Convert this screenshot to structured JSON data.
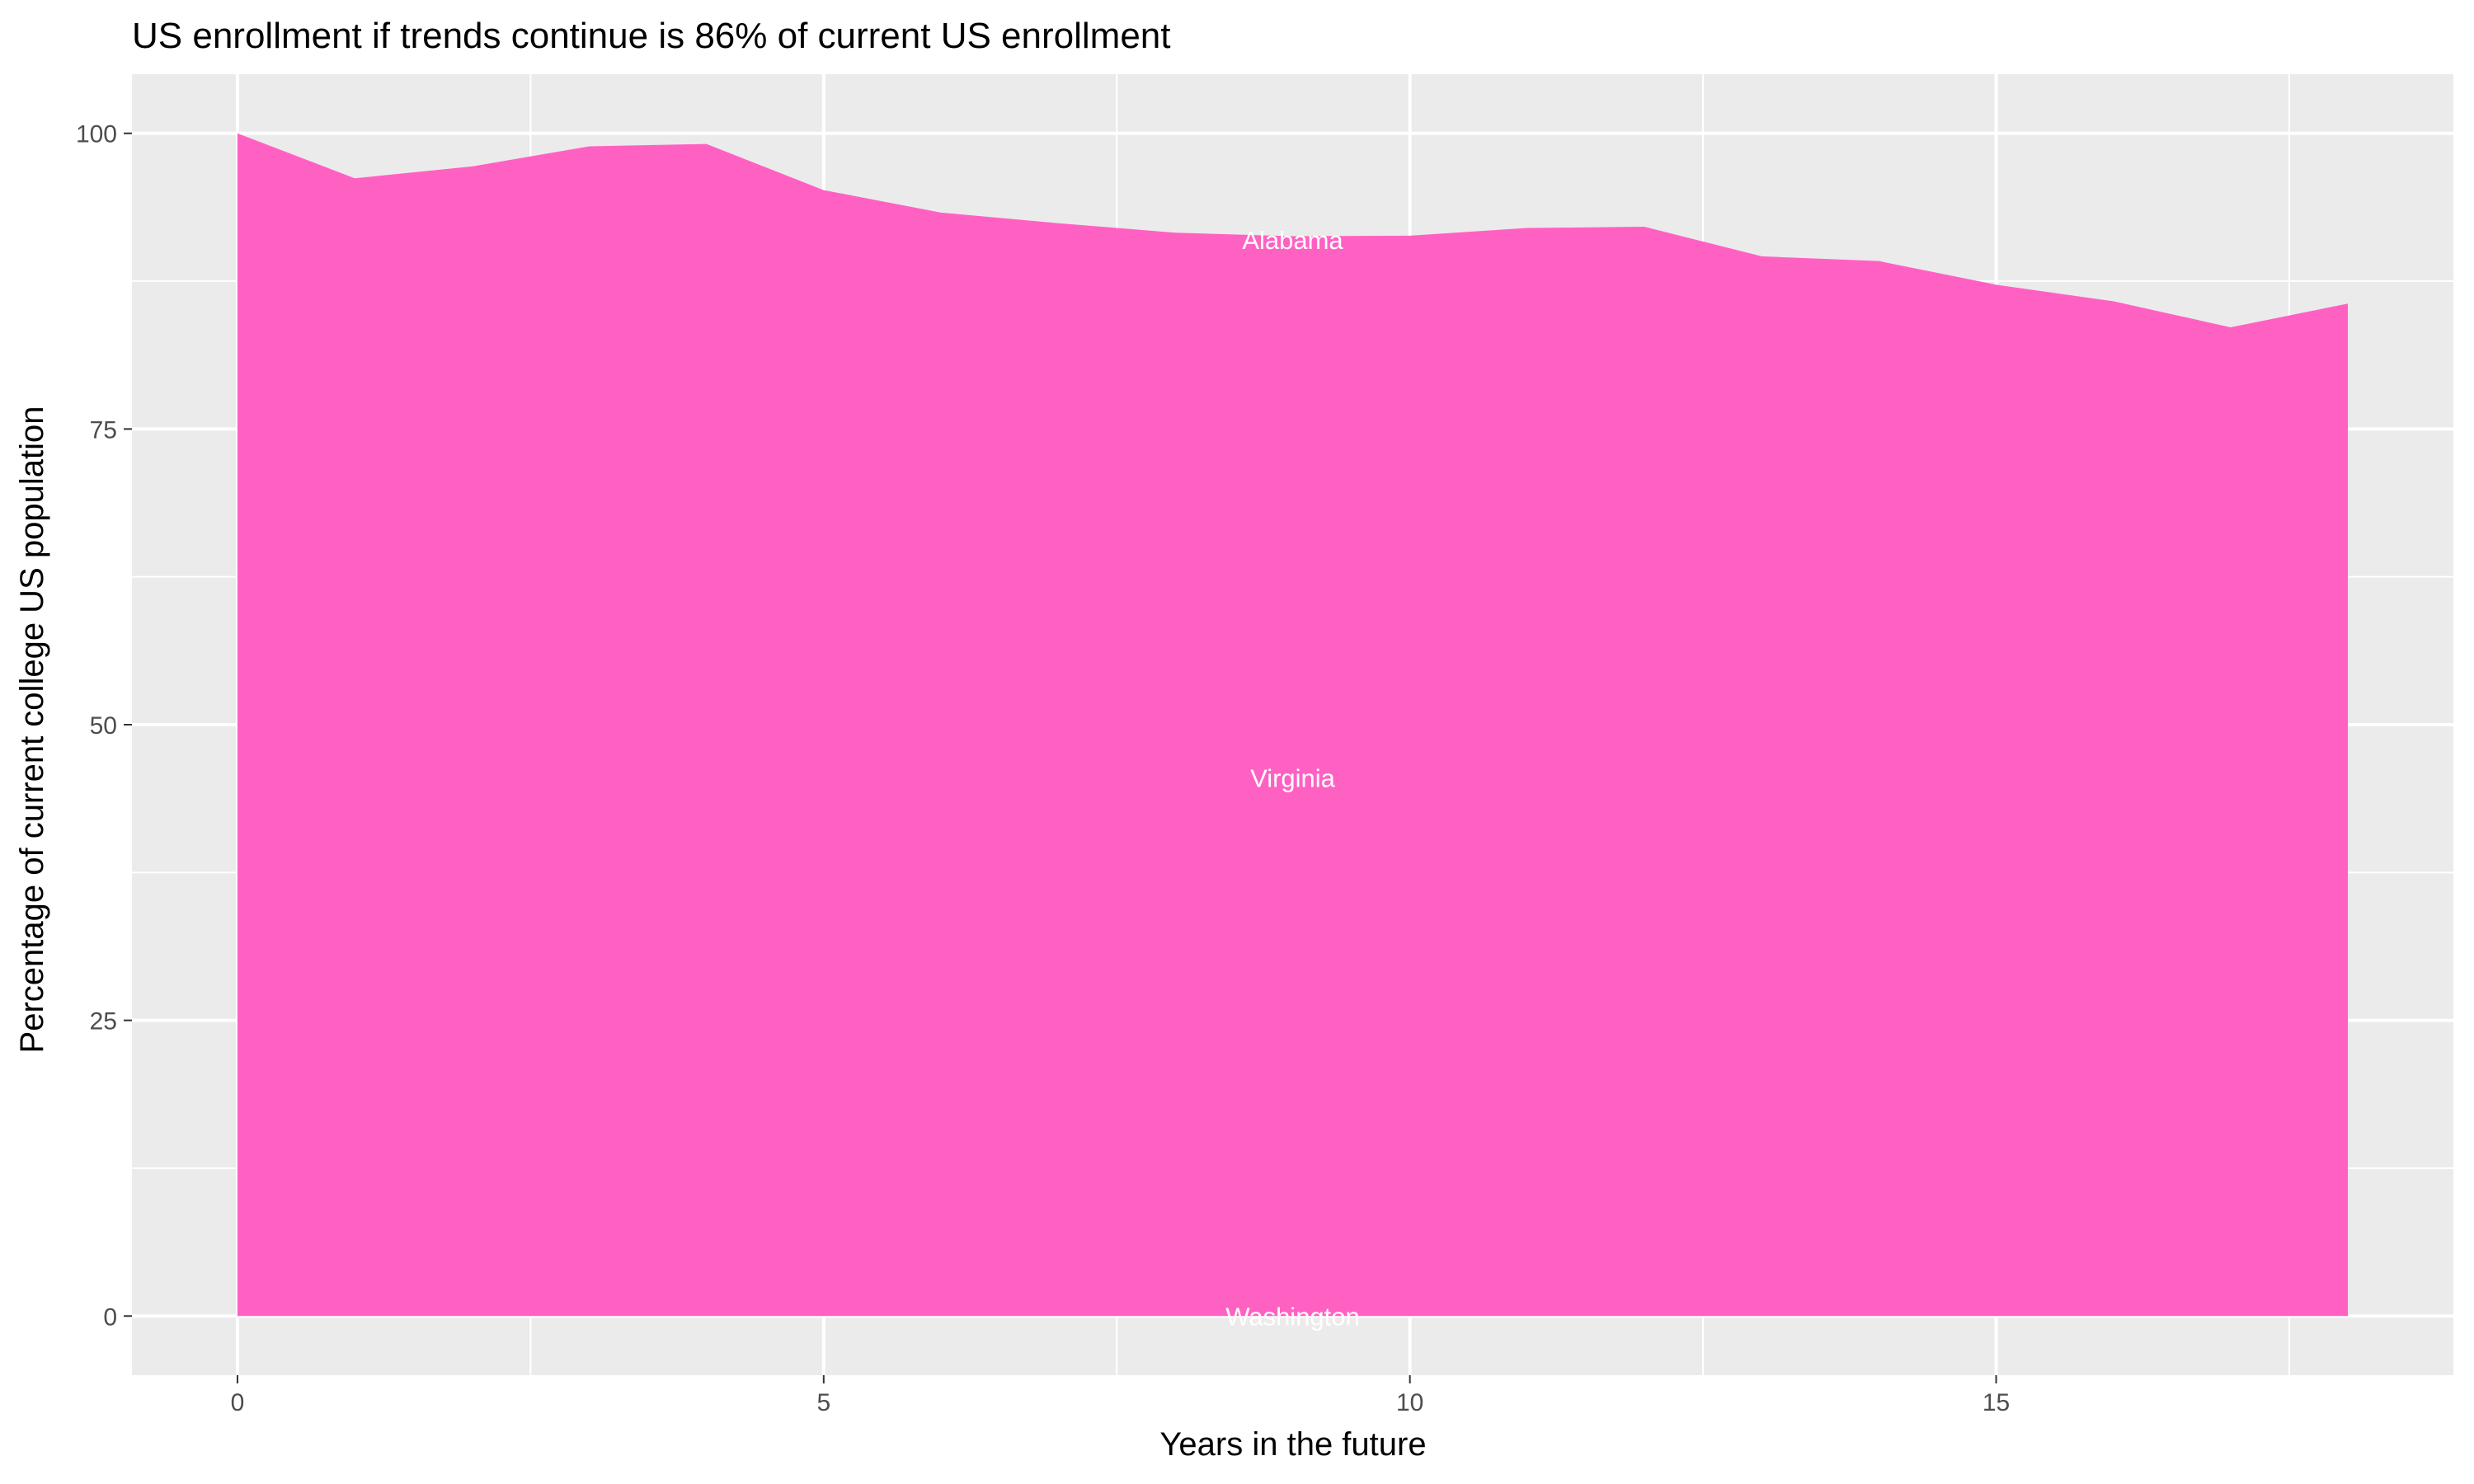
{
  "chart_data": {
    "type": "area",
    "title": "US enrollment if trends continue is 86% of current US enrollment",
    "xlabel": "Years in the future",
    "ylabel": "Percentage of current college US population",
    "xlim": [
      -0.9,
      18.9
    ],
    "ylim": [
      -5,
      105
    ],
    "xticks": [
      0,
      5,
      10,
      15
    ],
    "yticks": [
      0,
      25,
      50,
      75,
      100
    ],
    "grid": true,
    "background": "#EBEBEB",
    "fill_color": "#FF61C3",
    "x": [
      0,
      1,
      2,
      3,
      4,
      5,
      6,
      7,
      8,
      9,
      10,
      11,
      12,
      13,
      14,
      15,
      16,
      17,
      18
    ],
    "values": [
      100,
      96.2,
      97.2,
      98.9,
      99.1,
      95.2,
      93.3,
      92.4,
      91.6,
      91.3,
      91.35,
      92.0,
      92.1,
      89.6,
      89.2,
      87.2,
      85.8,
      83.6,
      85.6
    ],
    "annotations": [
      {
        "text": "Alabama",
        "x": 9,
        "y": 91
      },
      {
        "text": "Virginia",
        "x": 9,
        "y": 45.5
      },
      {
        "text": "Washington",
        "x": 9,
        "y": 0
      }
    ]
  }
}
